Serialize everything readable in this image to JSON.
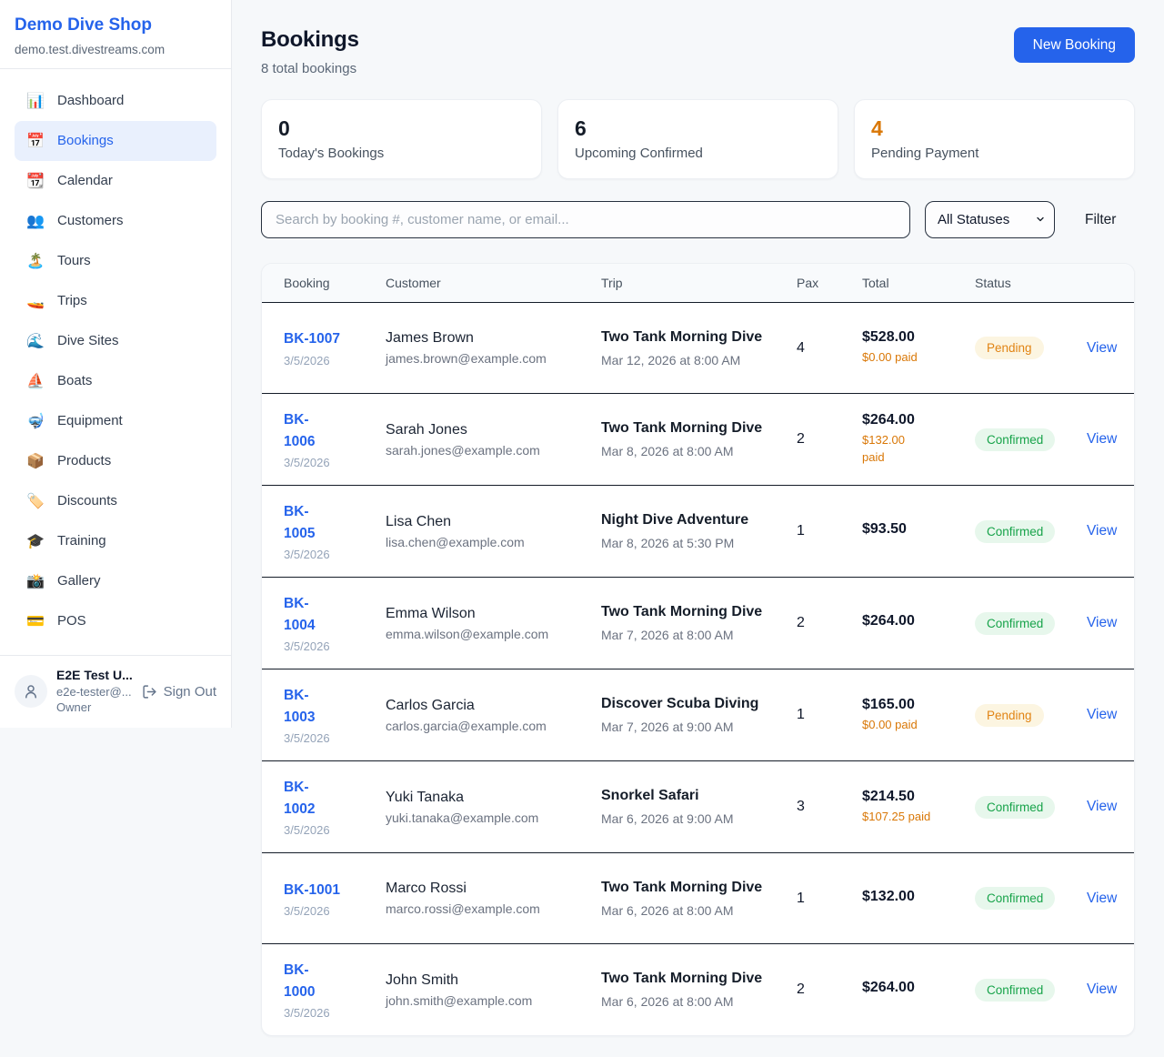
{
  "colors": {
    "accent": "#2563eb",
    "pending_text": "#e18414",
    "pending_bg": "#fcf5e1",
    "confirmed_text": "#17a34a",
    "confirmed_bg": "#e7f7ec",
    "stat_pending_value": "#d97706"
  },
  "sidebar": {
    "title": "Demo Dive Shop",
    "subtitle": "demo.test.divestreams.com",
    "items": [
      {
        "label": "Dashboard",
        "icon": "📊",
        "icon_name": "bar-chart-icon",
        "active": false
      },
      {
        "label": "Bookings",
        "icon": "📅",
        "icon_name": "calendar-icon",
        "active": true
      },
      {
        "label": "Calendar",
        "icon": "📆",
        "icon_name": "tear-off-calendar-icon",
        "active": false
      },
      {
        "label": "Customers",
        "icon": "👥",
        "icon_name": "people-icon",
        "active": false
      },
      {
        "label": "Tours",
        "icon": "🏝️",
        "icon_name": "island-icon",
        "active": false
      },
      {
        "label": "Trips",
        "icon": "🚤",
        "icon_name": "speedboat-icon",
        "active": false
      },
      {
        "label": "Dive Sites",
        "icon": "🌊",
        "icon_name": "wave-icon",
        "active": false
      },
      {
        "label": "Boats",
        "icon": "⛵",
        "icon_name": "sailboat-icon",
        "active": false
      },
      {
        "label": "Equipment",
        "icon": "🤿",
        "icon_name": "diving-mask-icon",
        "active": false
      },
      {
        "label": "Products",
        "icon": "📦",
        "icon_name": "package-icon",
        "active": false
      },
      {
        "label": "Discounts",
        "icon": "🏷️",
        "icon_name": "tag-icon",
        "active": false
      },
      {
        "label": "Training",
        "icon": "🎓",
        "icon_name": "graduation-cap-icon",
        "active": false
      },
      {
        "label": "Gallery",
        "icon": "📸",
        "icon_name": "camera-icon",
        "active": false
      },
      {
        "label": "POS",
        "icon": "💳",
        "icon_name": "credit-card-icon",
        "active": false
      }
    ],
    "user": {
      "name": "E2E Test U...",
      "email": "e2e-tester@...",
      "role": "Owner",
      "sign_out_label": "Sign Out"
    }
  },
  "header": {
    "title": "Bookings",
    "subtitle": "8 total bookings",
    "new_booking_label": "New Booking"
  },
  "stats": [
    {
      "value": "0",
      "label": "Today's Bookings",
      "value_color": "#141c28"
    },
    {
      "value": "6",
      "label": "Upcoming Confirmed",
      "value_color": "#141c28"
    },
    {
      "value": "4",
      "label": "Pending Payment",
      "value_color": "#d97706"
    }
  ],
  "filters": {
    "search_placeholder": "Search by booking #, customer name, or email...",
    "status_selected": "All Statuses",
    "filter_label": "Filter"
  },
  "table": {
    "columns": [
      "Booking",
      "Customer",
      "Trip",
      "Pax",
      "Total",
      "Status"
    ],
    "view_label": "View",
    "rows": [
      {
        "id": "BK-1007",
        "id_wrap": false,
        "date": "3/5/2026",
        "customer": "James Brown",
        "email": "james.brown@example.com",
        "trip": "Two Tank Morning Dive",
        "trip_time": "Mar 12, 2026 at 8:00 AM",
        "pax": "4",
        "total": "$528.00",
        "paid": "$0.00 paid",
        "paid_wrap": false,
        "status": "Pending"
      },
      {
        "id": "BK-1006",
        "id_wrap": true,
        "date": "3/5/2026",
        "customer": "Sarah Jones",
        "email": "sarah.jones@example.com",
        "trip": "Two Tank Morning Dive",
        "trip_time": "Mar 8, 2026 at 8:00 AM",
        "pax": "2",
        "total": "$264.00",
        "paid": "$132.00 paid",
        "paid_wrap": true,
        "status": "Confirmed"
      },
      {
        "id": "BK-1005",
        "id_wrap": true,
        "date": "3/5/2026",
        "customer": "Lisa Chen",
        "email": "lisa.chen@example.com",
        "trip": "Night Dive Adventure",
        "trip_time": "Mar 8, 2026 at 5:30 PM",
        "pax": "1",
        "total": "$93.50",
        "paid": null,
        "paid_wrap": false,
        "status": "Confirmed"
      },
      {
        "id": "BK-1004",
        "id_wrap": true,
        "date": "3/5/2026",
        "customer": "Emma Wilson",
        "email": "emma.wilson@example.com",
        "trip": "Two Tank Morning Dive",
        "trip_time": "Mar 7, 2026 at 8:00 AM",
        "pax": "2",
        "total": "$264.00",
        "paid": null,
        "paid_wrap": false,
        "status": "Confirmed"
      },
      {
        "id": "BK-1003",
        "id_wrap": true,
        "date": "3/5/2026",
        "customer": "Carlos Garcia",
        "email": "carlos.garcia@example.com",
        "trip": "Discover Scuba Diving",
        "trip_time": "Mar 7, 2026 at 9:00 AM",
        "pax": "1",
        "total": "$165.00",
        "paid": "$0.00 paid",
        "paid_wrap": false,
        "status": "Pending"
      },
      {
        "id": "BK-1002",
        "id_wrap": true,
        "date": "3/5/2026",
        "customer": "Yuki Tanaka",
        "email": "yuki.tanaka@example.com",
        "trip": "Snorkel Safari",
        "trip_time": "Mar 6, 2026 at 9:00 AM",
        "pax": "3",
        "total": "$214.50",
        "paid": "$107.25 paid",
        "paid_wrap": false,
        "status": "Confirmed"
      },
      {
        "id": "BK-1001",
        "id_wrap": false,
        "date": "3/5/2026",
        "customer": "Marco Rossi",
        "email": "marco.rossi@example.com",
        "trip": "Two Tank Morning Dive",
        "trip_time": "Mar 6, 2026 at 8:00 AM",
        "pax": "1",
        "total": "$132.00",
        "paid": null,
        "paid_wrap": false,
        "status": "Confirmed"
      },
      {
        "id": "BK-1000",
        "id_wrap": true,
        "date": "3/5/2026",
        "customer": "John Smith",
        "email": "john.smith@example.com",
        "trip": "Two Tank Morning Dive",
        "trip_time": "Mar 6, 2026 at 8:00 AM",
        "pax": "2",
        "total": "$264.00",
        "paid": null,
        "paid_wrap": false,
        "status": "Confirmed"
      }
    ]
  }
}
